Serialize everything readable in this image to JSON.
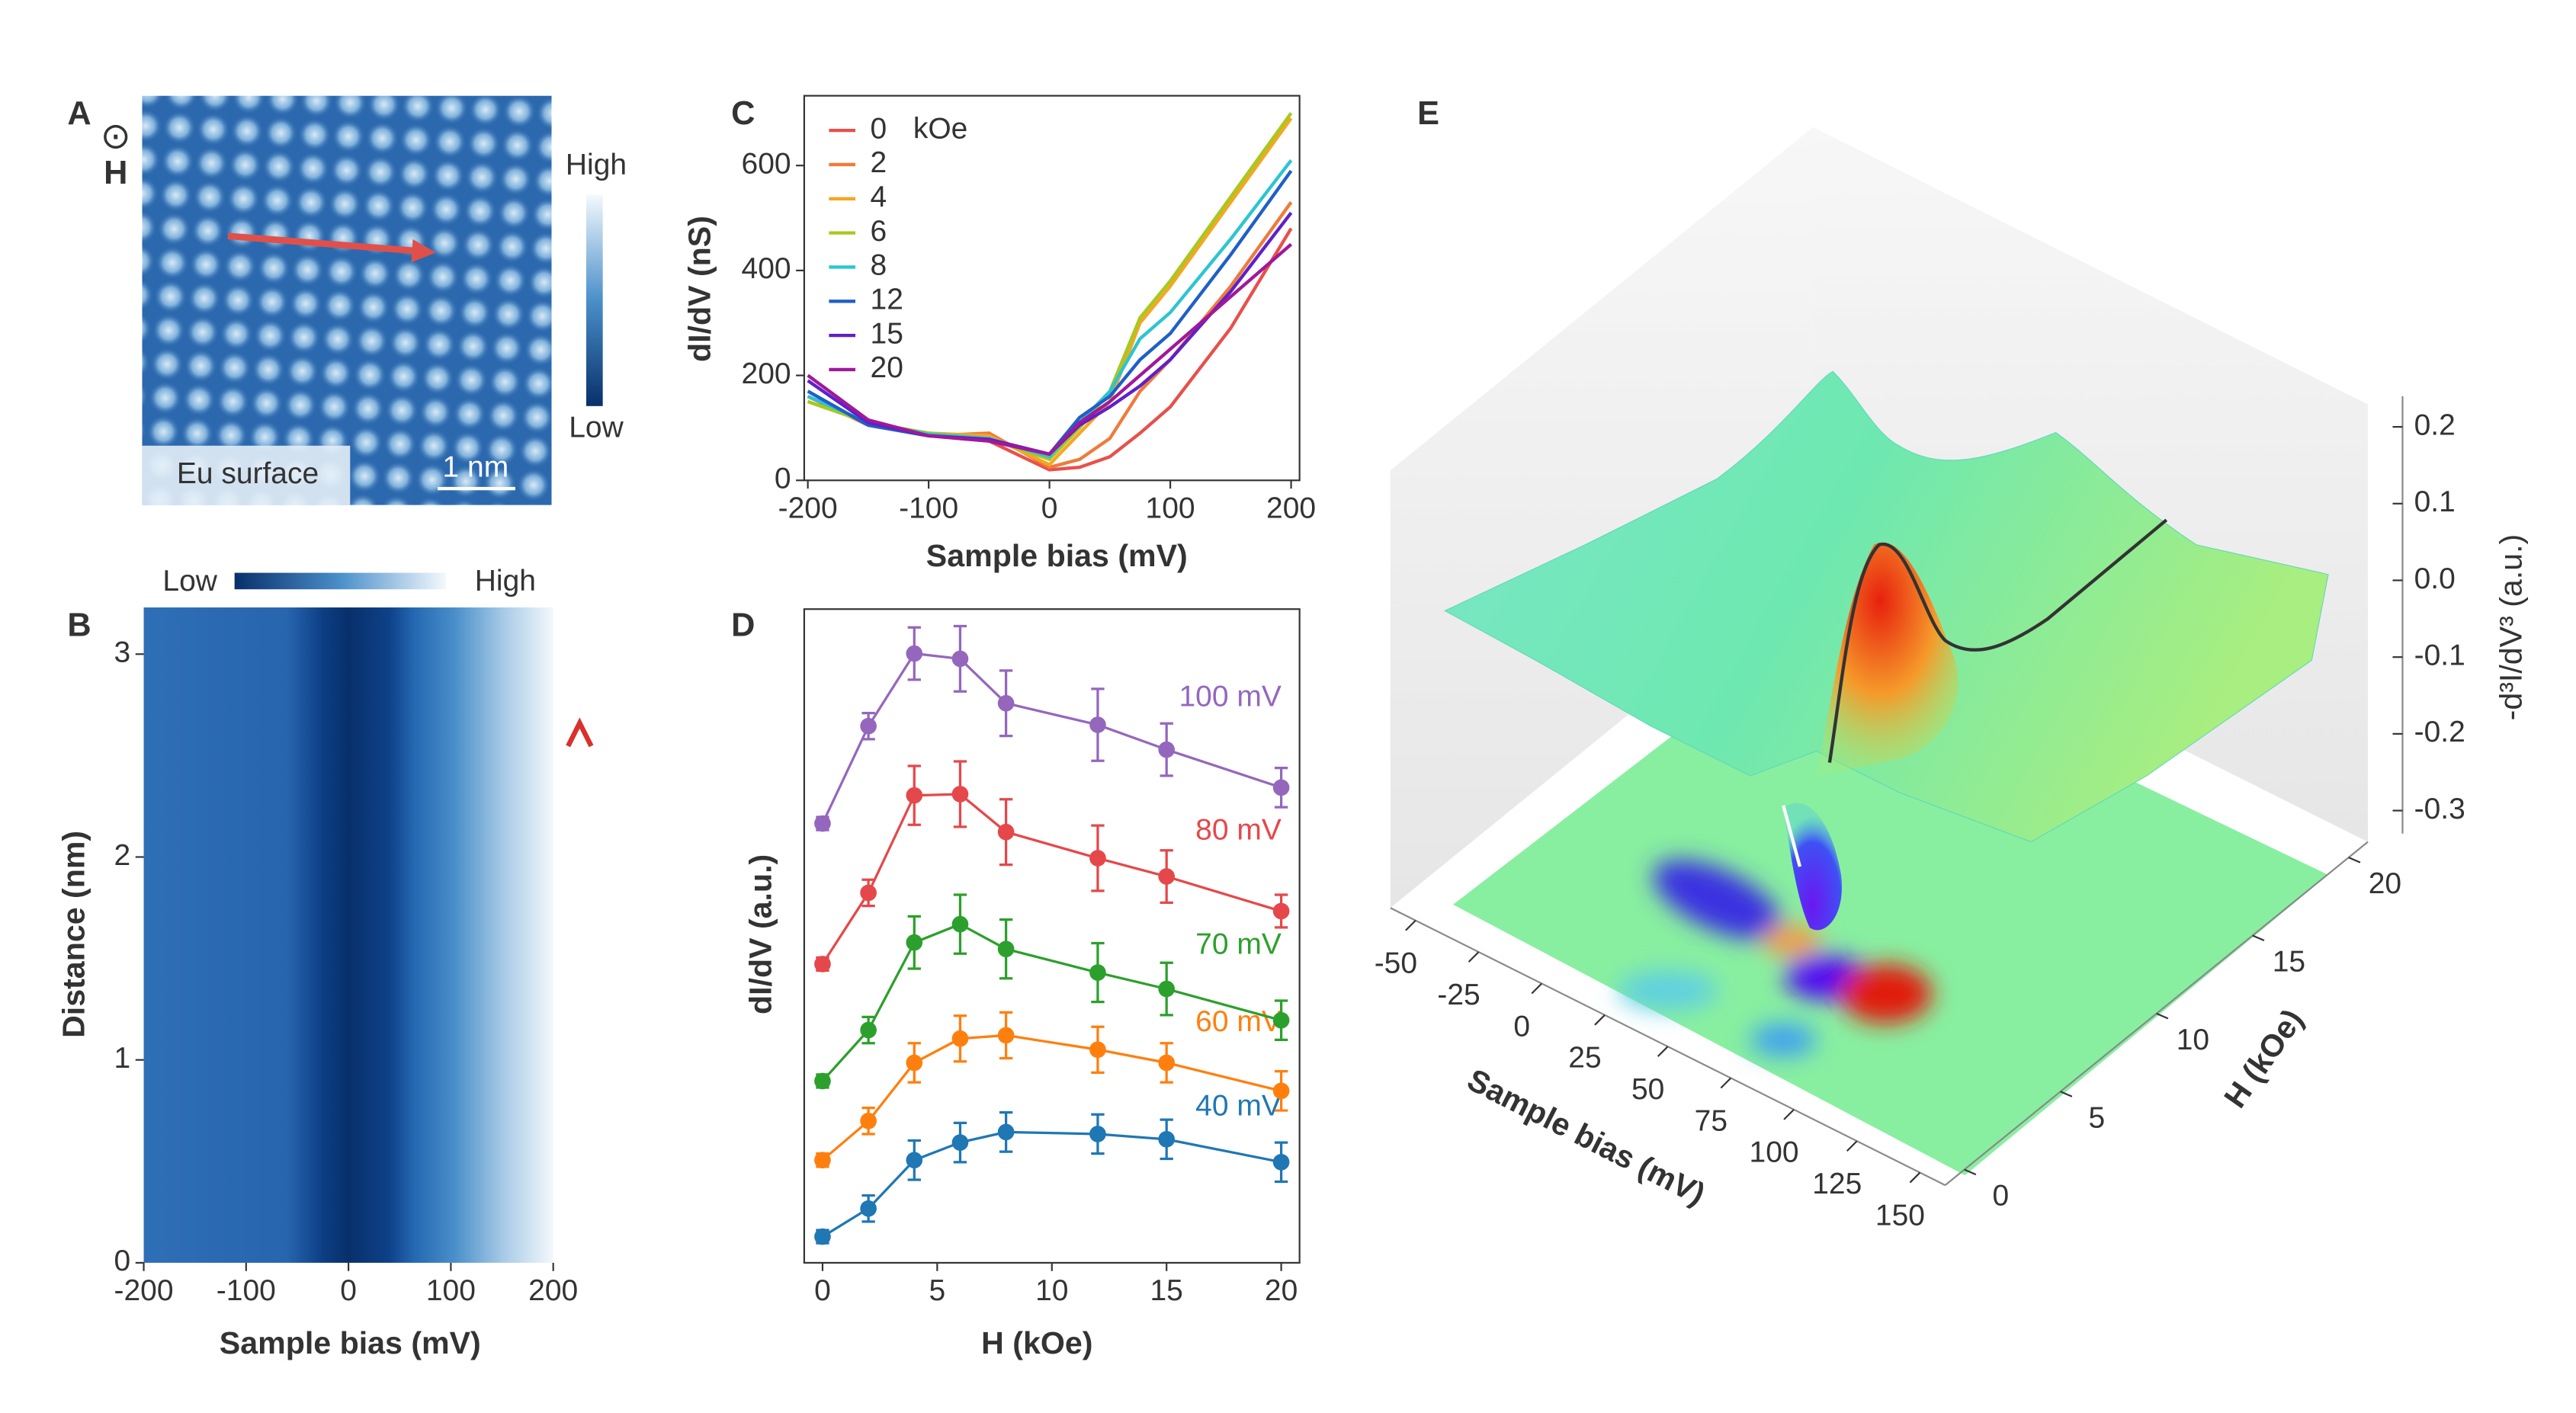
{
  "chart_data": [
    {
      "type": "image",
      "label": "A",
      "field_symbol": "⊙",
      "field_label": "H",
      "colorbar_labels": [
        "High",
        "Low"
      ],
      "annotation": "Eu surface",
      "scale_bar": "1 nm"
    },
    {
      "type": "heatmap",
      "label": "B",
      "colorbar_labels": [
        "Low",
        "High"
      ],
      "xlabel": "Sample bias (mV)",
      "ylabel": "Distance (nm)",
      "xlim": [
        -200,
        200
      ],
      "xticks": [
        -200,
        -100,
        0,
        100,
        200
      ],
      "ylim": [
        0,
        3.23
      ],
      "yticks": [
        0,
        1,
        2,
        3
      ]
    },
    {
      "type": "line",
      "label": "C",
      "xlabel": "Sample bias (mV)",
      "ylabel": "dI/dV (nS)",
      "legend_unit": "kOe",
      "x": [
        -200,
        -150,
        -100,
        -50,
        0,
        25,
        50,
        75,
        100,
        150,
        200
      ],
      "xlim": [
        -203,
        207
      ],
      "xticks": [
        -200,
        -100,
        0,
        100,
        200
      ],
      "ylim": [
        0,
        733
      ],
      "yticks": [
        0,
        200,
        400,
        600
      ],
      "series": [
        {
          "name": "0",
          "color": "#e8504a",
          "values": [
            160,
            105,
            85,
            75,
            20,
            25,
            45,
            90,
            140,
            290,
            480
          ]
        },
        {
          "name": "2",
          "color": "#f07a3a",
          "values": [
            160,
            105,
            85,
            90,
            25,
            40,
            80,
            170,
            230,
            370,
            530
          ]
        },
        {
          "name": "4",
          "color": "#f5a623",
          "values": [
            150,
            110,
            90,
            85,
            30,
            90,
            150,
            300,
            370,
            530,
            690
          ]
        },
        {
          "name": "6",
          "color": "#a8c820",
          "values": [
            150,
            110,
            90,
            80,
            40,
            100,
            170,
            310,
            380,
            540,
            700
          ]
        },
        {
          "name": "8",
          "color": "#2cc5d0",
          "values": [
            160,
            110,
            88,
            80,
            45,
            110,
            170,
            270,
            320,
            460,
            610
          ]
        },
        {
          "name": "12",
          "color": "#1f5fc8",
          "values": [
            170,
            105,
            85,
            78,
            50,
            120,
            160,
            230,
            280,
            430,
            590
          ]
        },
        {
          "name": "15",
          "color": "#6020c8",
          "values": [
            190,
            110,
            85,
            78,
            50,
            105,
            140,
            180,
            230,
            360,
            510
          ]
        },
        {
          "name": "20",
          "color": "#a0189a",
          "values": [
            200,
            115,
            85,
            75,
            50,
            110,
            150,
            200,
            250,
            350,
            450
          ]
        }
      ]
    },
    {
      "type": "errorbar",
      "label": "D",
      "xlabel": "H (kOe)",
      "ylabel": "dI/dV (a.u.)",
      "x": [
        0,
        2,
        4,
        6,
        8,
        12,
        15,
        20
      ],
      "xlim": [
        -0.8,
        20.8
      ],
      "xticks": [
        0,
        5,
        10,
        15,
        20
      ],
      "ylim": [
        0,
        10
      ],
      "series": [
        {
          "name": "40 mV",
          "color": "#1f77b4",
          "values": [
            0.4,
            0.83,
            1.57,
            1.84,
            2.0,
            1.97,
            1.89,
            1.54
          ],
          "errors": [
            0.1,
            0.2,
            0.3,
            0.3,
            0.3,
            0.3,
            0.3,
            0.3
          ]
        },
        {
          "name": "60 mV",
          "color": "#ff7f0e",
          "values": [
            1.57,
            2.17,
            3.06,
            3.43,
            3.48,
            3.26,
            3.06,
            2.63
          ],
          "errors": [
            0.1,
            0.2,
            0.3,
            0.35,
            0.35,
            0.35,
            0.3,
            0.3
          ]
        },
        {
          "name": "70 mV",
          "color": "#2ca02c",
          "values": [
            2.78,
            3.56,
            4.9,
            5.18,
            4.8,
            4.44,
            4.19,
            3.71
          ],
          "errors": [
            0.1,
            0.2,
            0.4,
            0.45,
            0.45,
            0.45,
            0.4,
            0.3
          ]
        },
        {
          "name": "80 mV",
          "color": "#e5484a",
          "values": [
            4.57,
            5.66,
            7.15,
            7.17,
            6.59,
            6.19,
            5.91,
            5.38
          ],
          "errors": [
            0.1,
            0.2,
            0.45,
            0.5,
            0.5,
            0.5,
            0.4,
            0.25
          ]
        },
        {
          "name": "100 mV",
          "color": "#9467bd",
          "values": [
            6.72,
            8.21,
            9.32,
            9.24,
            8.56,
            8.23,
            7.85,
            7.27
          ],
          "errors": [
            0.1,
            0.2,
            0.4,
            0.5,
            0.5,
            0.55,
            0.4,
            0.3
          ]
        }
      ]
    },
    {
      "type": "surface3d",
      "label": "E",
      "xlabel": "Sample bias (mV)",
      "ylabel": "H (kOe)",
      "zlabel": "-d³I/dV³ (a.u.)",
      "xlim": [
        -60,
        160
      ],
      "xticks": [
        -50,
        -25,
        0,
        25,
        50,
        75,
        100,
        125,
        150
      ],
      "ylim": [
        -1,
        21
      ],
      "yticks": [
        0,
        5,
        10,
        15,
        20
      ],
      "zlim": [
        -0.33,
        0.24
      ],
      "zticks": [
        0.2,
        0.1,
        {
          "value": 0,
          "label": "0.0"
        },
        -0.1,
        -0.2,
        -0.3
      ]
    }
  ]
}
